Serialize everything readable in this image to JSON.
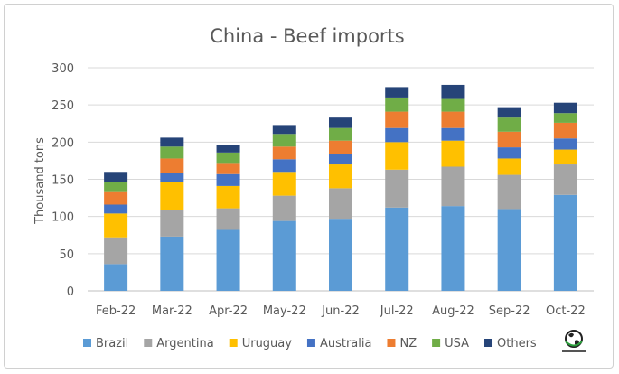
{
  "chart_data": {
    "type": "bar",
    "stacked": true,
    "title": "China - Beef imports",
    "xlabel": "",
    "ylabel": "Thousand tons",
    "ylim": [
      0,
      300
    ],
    "yticks": [
      0,
      50,
      100,
      150,
      200,
      250,
      300
    ],
    "grid": true,
    "legend_position": "bottom",
    "categories": [
      "Feb-22",
      "Mar-22",
      "Apr-22",
      "May-22",
      "Jun-22",
      "Jul-22",
      "Aug-22",
      "Sep-22",
      "Oct-22"
    ],
    "series": [
      {
        "name": "Brazil",
        "color": "#5b9bd5",
        "values": [
          36,
          73,
          82,
          94,
          97,
          112,
          114,
          110,
          129
        ]
      },
      {
        "name": "Argentina",
        "color": "#a5a5a5",
        "values": [
          36,
          36,
          29,
          34,
          41,
          51,
          53,
          46,
          41
        ]
      },
      {
        "name": "Uruguay",
        "color": "#ffc000",
        "values": [
          32,
          37,
          30,
          32,
          32,
          37,
          35,
          22,
          20
        ]
      },
      {
        "name": "Australia",
        "color": "#4472c4",
        "values": [
          12,
          12,
          16,
          17,
          14,
          19,
          17,
          15,
          15
        ]
      },
      {
        "name": "NZ",
        "color": "#ed7d31",
        "values": [
          18,
          20,
          15,
          17,
          18,
          22,
          22,
          21,
          21
        ]
      },
      {
        "name": "USA",
        "color": "#70ad47",
        "values": [
          12,
          16,
          14,
          17,
          17,
          19,
          17,
          19,
          13
        ]
      },
      {
        "name": "Others",
        "color": "#264478",
        "values": [
          14,
          12,
          10,
          12,
          14,
          14,
          19,
          14,
          14
        ]
      }
    ]
  },
  "logo": {
    "icon": "globe-logo-icon"
  }
}
